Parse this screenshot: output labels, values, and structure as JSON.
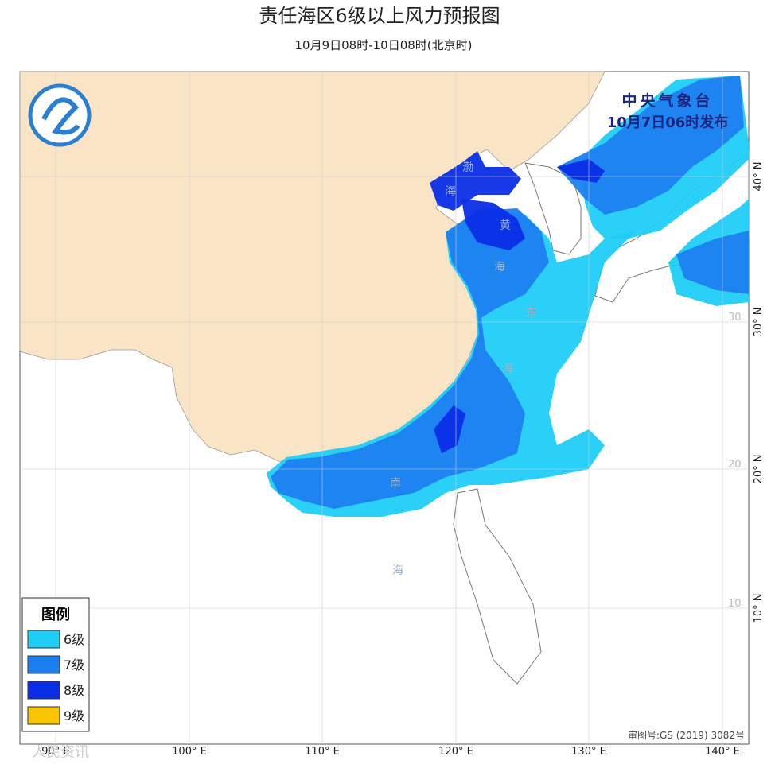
{
  "header": {
    "title": "责任海区6级以上风力预报图",
    "subtitle": "10月9日08时-10日08时(北京时)"
  },
  "issuer": {
    "agency": "中央气象台",
    "time": "10月7日06时发布"
  },
  "legend": {
    "title": "图例",
    "items": [
      {
        "label": "6级",
        "color": "#1fcdf7"
      },
      {
        "label": "7级",
        "color": "#1c7ff0"
      },
      {
        "label": "8级",
        "color": "#0a2de6"
      },
      {
        "label": "9级",
        "color": "#f7c600"
      }
    ]
  },
  "sea_labels": [
    "渤",
    "海",
    "黄",
    "海",
    "东",
    "海",
    "南",
    "海"
  ],
  "lon_labels": [
    "90° E",
    "100° E",
    "110° E",
    "120° E",
    "130° E",
    "140° E"
  ],
  "lat_labels": [
    "40° N",
    "30° N",
    "20° N",
    "10° N"
  ],
  "grid_lat_labels": [
    "30",
    "20",
    "10"
  ],
  "approval": "审图号:GS (2019) 3082号",
  "watermark": "人民资讯"
}
